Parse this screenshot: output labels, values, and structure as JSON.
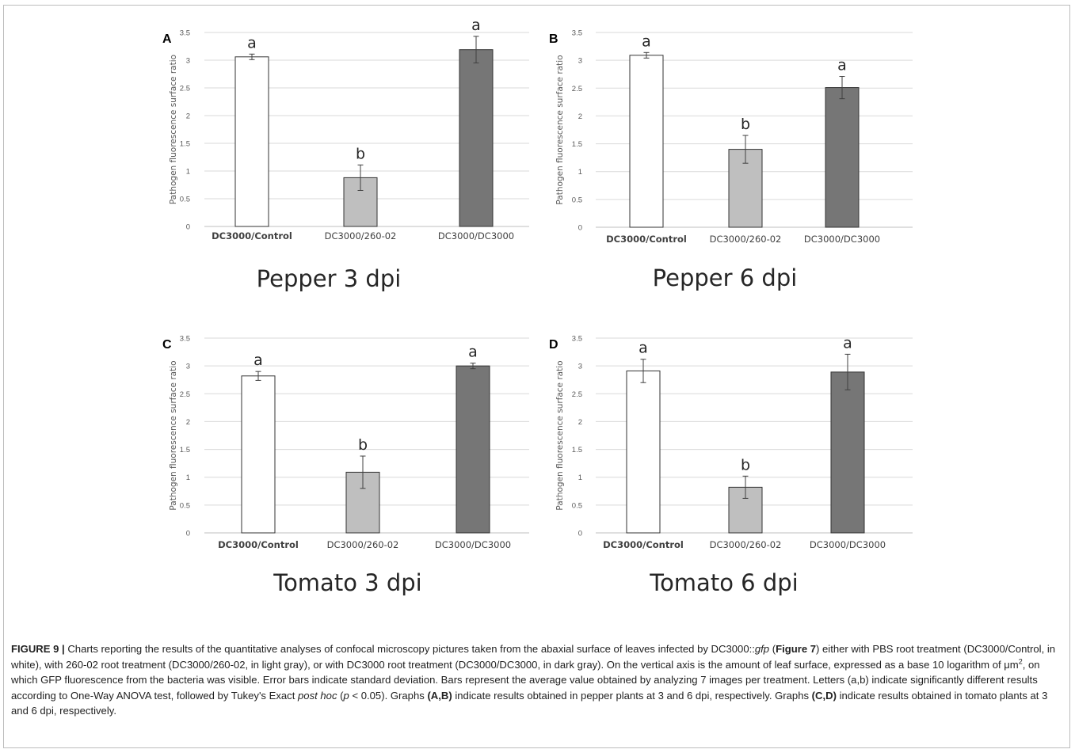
{
  "figure": {
    "panels": [
      {
        "letter": "A",
        "title": "Pepper 3 dpi"
      },
      {
        "letter": "B",
        "title": "Pepper 6 dpi"
      },
      {
        "letter": "C",
        "title": "Tomato 3 dpi"
      },
      {
        "letter": "D",
        "title": "Tomato 6 dpi"
      }
    ]
  },
  "colors": {
    "control": "#ffffff",
    "treat_260": "#bfbfbf",
    "treat_dc3000": "#767676",
    "axis_gridline": "#d9d9d9",
    "bar_outline": "#333333"
  },
  "chart_data": [
    {
      "type": "bar",
      "panel": "A",
      "title": "Pepper 3 dpi",
      "ylabel": "Pathogen fluorescence surface ratio",
      "xlabel": "",
      "ylim": [
        0,
        3.5
      ],
      "yticks": [
        "0",
        "0.5",
        "1",
        "1.5",
        "2",
        "2.5",
        "3",
        "3.5"
      ],
      "grid": true,
      "categories": [
        "DC3000/Control",
        "DC3000/260-02",
        "DC3000/DC3000"
      ],
      "values": [
        3.06,
        0.88,
        3.19
      ],
      "errors": [
        0.05,
        0.23,
        0.24
      ],
      "letters": [
        "a",
        "b",
        "a"
      ]
    },
    {
      "type": "bar",
      "panel": "B",
      "title": "Pepper 6 dpi",
      "ylabel": "Pathogen fluorescence surface ratio",
      "xlabel": "",
      "ylim": [
        0,
        3.5
      ],
      "yticks": [
        "0",
        "0.5",
        "1",
        "1.5",
        "2",
        "2.5",
        "3",
        "3.5"
      ],
      "grid": true,
      "categories": [
        "DC3000/Control",
        "DC3000/260-02",
        "DC3000/DC3000"
      ],
      "values": [
        3.09,
        1.4,
        2.51
      ],
      "errors": [
        0.05,
        0.25,
        0.2
      ],
      "letters": [
        "a",
        "b",
        "a"
      ]
    },
    {
      "type": "bar",
      "panel": "C",
      "title": "Tomato 3 dpi",
      "ylabel": "Pathogen fluorescence surface ratio",
      "xlabel": "",
      "ylim": [
        0,
        3.5
      ],
      "yticks": [
        "0",
        "0.5",
        "1",
        "1.5",
        "2",
        "2.5",
        "3",
        "3.5"
      ],
      "grid": true,
      "categories": [
        "DC3000/Control",
        "DC3000/260-02",
        "DC3000/DC3000"
      ],
      "values": [
        2.82,
        1.09,
        3.0
      ],
      "errors": [
        0.08,
        0.29,
        0.05
      ],
      "letters": [
        "a",
        "b",
        "a"
      ]
    },
    {
      "type": "bar",
      "panel": "D",
      "title": "Tomato 6 dpi",
      "ylabel": "Pathogen fluorescence surface ratio",
      "xlabel": "",
      "ylim": [
        0,
        3.5
      ],
      "yticks": [
        "0",
        "0.5",
        "1",
        "1.5",
        "2",
        "2.5",
        "3",
        "3.5"
      ],
      "grid": true,
      "categories": [
        "DC3000/Control",
        "DC3000/260-02",
        "DC3000/DC3000"
      ],
      "values": [
        2.91,
        0.82,
        2.89
      ],
      "errors": [
        0.21,
        0.2,
        0.32
      ],
      "letters": [
        "a",
        "b",
        "a"
      ]
    }
  ],
  "caption": {
    "figure_label": "FIGURE 9 |",
    "text_1": " Charts reporting the results of the quantitative analyses of confocal microscopy pictures taken from the abaxial surface of leaves infected by DC3000::",
    "gfp": "gfp",
    "text_2": " (",
    "figure_ref": "Figure 7",
    "text_3": ") either with PBS root treatment (DC3000/Control, in white), with 260-02 root treatment (DC3000/260-02, in light gray), or with DC3000 root treatment (DC3000/DC3000, in dark gray). On the vertical axis is the amount of leaf surface, expressed as a base 10 logarithm of μm",
    "sup": "2",
    "text_4": ", on which GFP fluorescence from the bacteria was visible. Error bars indicate standard deviation. Bars represent the average value obtained by analyzing 7 images per treatment. Letters (a,b) indicate significantly different results according to One-Way ANOVA test, followed by Tukey's Exact ",
    "post_hoc": "post hoc",
    "text_5": " (",
    "p": "p",
    "text_6": " < 0.05). Graphs ",
    "ab": "(A,B)",
    "text_7": " indicate results obtained in pepper plants at 3 and 6 dpi, respectively. Graphs ",
    "cd": "(C,D)",
    "text_8": " indicate results obtained in tomato plants at 3 and 6 dpi, respectively."
  }
}
